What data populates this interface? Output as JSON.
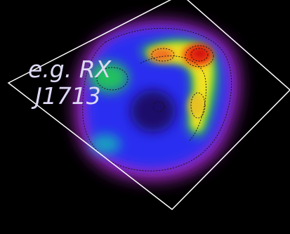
{
  "annotation": {
    "lines": [
      "e.g. RX",
      "J1713"
    ]
  }
}
